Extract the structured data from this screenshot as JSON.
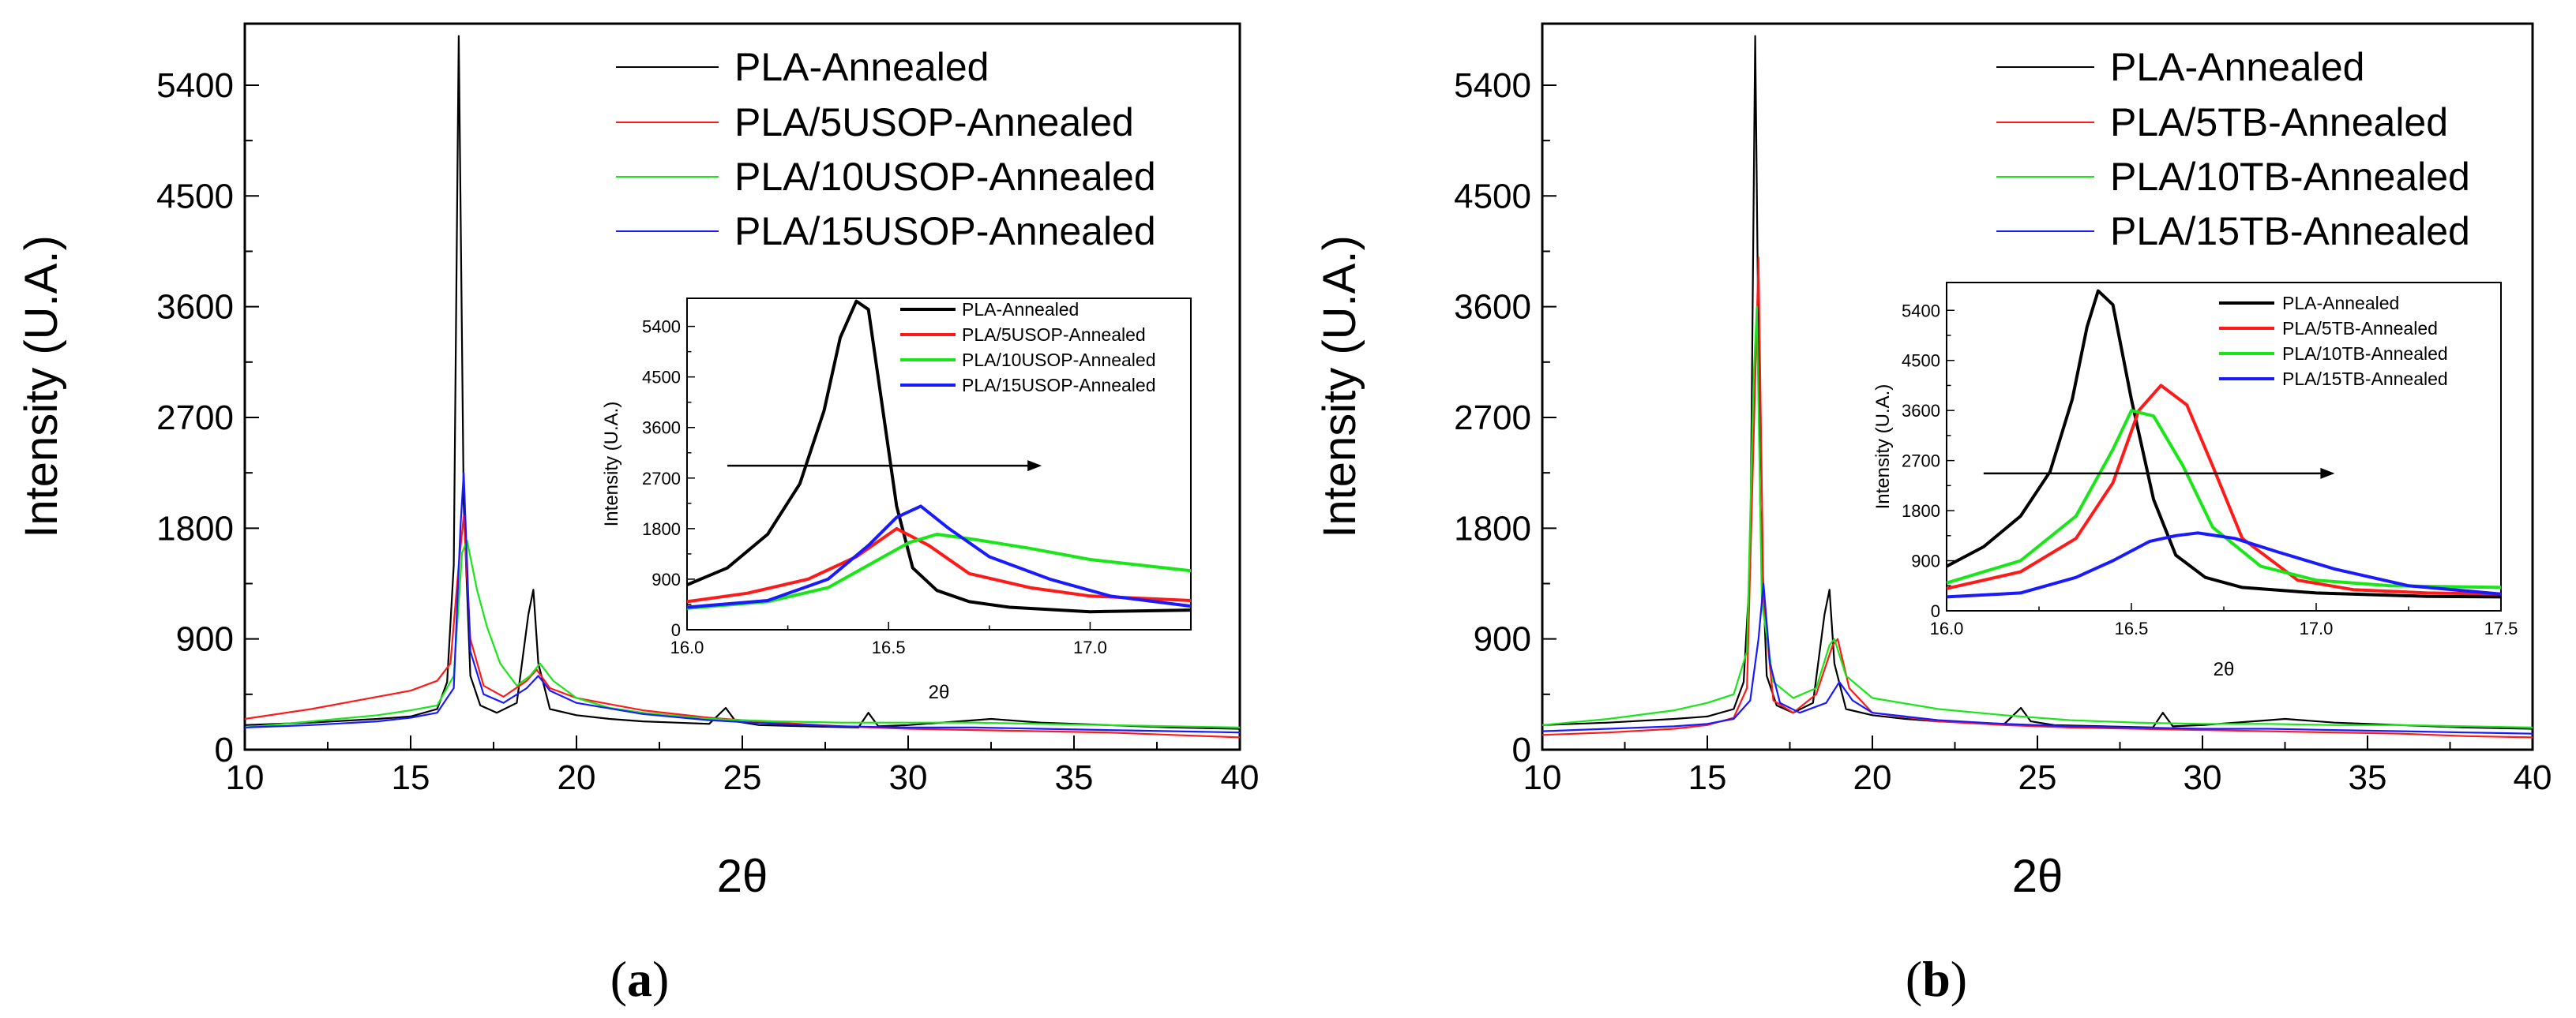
{
  "colors": {
    "black": "#000000",
    "red": "#ff1a1a",
    "green": "#19e619",
    "blue": "#1a1aff"
  },
  "chart_data": [
    {
      "type": "line",
      "panel_label_parts": [
        "(",
        "a",
        ")"
      ],
      "xlabel": "2θ",
      "ylabel": "Intensity (U.A.)",
      "xlim": [
        10,
        40
      ],
      "ylim": [
        0,
        5900
      ],
      "xticks": [
        10,
        15,
        20,
        25,
        30,
        35,
        40
      ],
      "yticks": [
        0,
        900,
        1800,
        2700,
        3600,
        4500,
        5400
      ],
      "legend_position": "top-right",
      "series": [
        {
          "name": "PLA-Annealed",
          "color": "#000000",
          "x": [
            10,
            12,
            14,
            15,
            15.8,
            16.1,
            16.3,
            16.45,
            16.6,
            16.8,
            17.1,
            17.6,
            18.2,
            18.55,
            18.7,
            18.85,
            19.2,
            20,
            21,
            22,
            23,
            24,
            24.5,
            24.8,
            25.5,
            27,
            28.5,
            28.8,
            29.1,
            30,
            32,
            32.5,
            34,
            36,
            38,
            40
          ],
          "y": [
            200,
            220,
            250,
            270,
            330,
            550,
            1500,
            5800,
            2000,
            600,
            360,
            300,
            380,
            1100,
            1300,
            700,
            330,
            280,
            250,
            230,
            220,
            210,
            340,
            230,
            200,
            190,
            180,
            300,
            190,
            200,
            240,
            250,
            220,
            200,
            180,
            170
          ]
        },
        {
          "name": "PLA/5USOP-Annealed",
          "color": "#ff1a1a",
          "x": [
            10,
            12,
            14,
            15,
            15.8,
            16.2,
            16.45,
            16.6,
            16.8,
            17.2,
            17.8,
            18.5,
            18.8,
            19.2,
            20,
            22,
            24,
            26,
            28,
            30,
            32,
            34,
            36,
            38,
            40
          ],
          "y": [
            250,
            330,
            430,
            480,
            560,
            700,
            1500,
            1900,
            900,
            520,
            430,
            560,
            650,
            500,
            420,
            320,
            260,
            220,
            190,
            170,
            160,
            150,
            140,
            120,
            100
          ]
        },
        {
          "name": "PLA/10USOP-Annealed",
          "color": "#19e619",
          "x": [
            10,
            12,
            14,
            15,
            15.8,
            16.3,
            16.55,
            16.7,
            17,
            17.3,
            17.7,
            18.2,
            18.6,
            18.9,
            19.3,
            20,
            21,
            22,
            24,
            26,
            28,
            30,
            32,
            34,
            36,
            38,
            40
          ],
          "y": [
            180,
            230,
            280,
            320,
            360,
            600,
            1600,
            1700,
            1300,
            1000,
            700,
            520,
            600,
            700,
            560,
            420,
            340,
            300,
            250,
            230,
            220,
            220,
            220,
            210,
            200,
            190,
            180
          ]
        },
        {
          "name": "PLA/15USOP-Annealed",
          "color": "#1a1aff",
          "x": [
            10,
            12,
            14,
            15,
            15.8,
            16.3,
            16.5,
            16.6,
            16.8,
            17.2,
            17.8,
            18.5,
            18.85,
            19.2,
            20,
            22,
            24,
            26,
            28,
            30,
            32,
            34,
            36,
            38,
            40
          ],
          "y": [
            180,
            200,
            230,
            260,
            300,
            500,
            1800,
            2250,
            800,
            450,
            380,
            500,
            600,
            480,
            380,
            290,
            240,
            210,
            190,
            180,
            180,
            170,
            160,
            150,
            140
          ]
        }
      ],
      "inset": {
        "xlabel": "2θ",
        "ylabel": "Intensity (U.A.)",
        "xlim": [
          16.0,
          17.25
        ],
        "ylim": [
          0,
          5900
        ],
        "xticks": [
          "16.0",
          "16.5",
          "17.0"
        ],
        "yticks": [
          0,
          900,
          1800,
          2700,
          3600,
          4500,
          5400
        ],
        "arrow": [
          16.1,
          2920,
          16.88,
          2920
        ],
        "series": [
          {
            "name": "PLA-Annealed",
            "color": "#000000",
            "x": [
              16.0,
              16.1,
              16.2,
              16.28,
              16.34,
              16.38,
              16.42,
              16.45,
              16.48,
              16.52,
              16.56,
              16.62,
              16.7,
              16.8,
              17.0,
              17.25
            ],
            "y": [
              800,
              1100,
              1700,
              2600,
              3900,
              5200,
              5850,
              5700,
              4200,
              2200,
              1100,
              700,
              500,
              400,
              320,
              350
            ]
          },
          {
            "name": "PLA/5USOP-Annealed",
            "color": "#ff1a1a",
            "x": [
              16.0,
              16.15,
              16.3,
              16.42,
              16.52,
              16.6,
              16.7,
              16.85,
              17.0,
              17.25
            ],
            "y": [
              500,
              650,
              900,
              1300,
              1800,
              1500,
              1000,
              750,
              600,
              520
            ]
          },
          {
            "name": "PLA/10USOP-Annealed",
            "color": "#19e619",
            "x": [
              16.0,
              16.2,
              16.35,
              16.45,
              16.55,
              16.62,
              16.72,
              16.85,
              17.0,
              17.25
            ],
            "y": [
              380,
              500,
              750,
              1150,
              1550,
              1700,
              1600,
              1450,
              1250,
              1050
            ]
          },
          {
            "name": "PLA/15USOP-Annealed",
            "color": "#1a1aff",
            "x": [
              16.0,
              16.2,
              16.35,
              16.45,
              16.52,
              16.58,
              16.65,
              16.75,
              16.9,
              17.05,
              17.25
            ],
            "y": [
              400,
              520,
              900,
              1500,
              2000,
              2200,
              1800,
              1300,
              900,
              600,
              420
            ]
          }
        ]
      }
    },
    {
      "type": "line",
      "panel_label_parts": [
        "(",
        "b",
        ")"
      ],
      "xlabel": "2θ",
      "ylabel": "Intensity (U.A.)",
      "xlim": [
        10,
        40
      ],
      "ylim": [
        0,
        5900
      ],
      "xticks": [
        10,
        15,
        20,
        25,
        30,
        35,
        40
      ],
      "yticks": [
        0,
        900,
        1800,
        2700,
        3600,
        4500,
        5400
      ],
      "legend_position": "top-right",
      "series": [
        {
          "name": "PLA-Annealed",
          "color": "#000000",
          "x": [
            10,
            12,
            14,
            15,
            15.8,
            16.1,
            16.3,
            16.45,
            16.6,
            16.8,
            17.1,
            17.6,
            18.2,
            18.55,
            18.7,
            18.85,
            19.2,
            20,
            21,
            22,
            23,
            24,
            24.5,
            24.8,
            25.5,
            27,
            28.5,
            28.8,
            29.1,
            30,
            32,
            32.5,
            34,
            36,
            38,
            40
          ],
          "y": [
            200,
            220,
            250,
            270,
            330,
            550,
            1500,
            5800,
            2000,
            600,
            360,
            300,
            380,
            1100,
            1300,
            700,
            330,
            280,
            250,
            230,
            220,
            210,
            340,
            230,
            200,
            190,
            180,
            300,
            190,
            200,
            240,
            250,
            220,
            200,
            180,
            170
          ]
        },
        {
          "name": "PLA/5TB-Annealed",
          "color": "#ff1a1a",
          "x": [
            10,
            12,
            14,
            15,
            15.8,
            16.2,
            16.45,
            16.55,
            16.7,
            17.0,
            17.6,
            18.3,
            18.8,
            18.95,
            19.3,
            20,
            22,
            24,
            26,
            28,
            30,
            32,
            34,
            36,
            38,
            40
          ],
          "y": [
            120,
            140,
            170,
            200,
            260,
            500,
            3000,
            4000,
            1200,
            400,
            300,
            450,
            850,
            900,
            500,
            300,
            230,
            200,
            180,
            170,
            160,
            150,
            140,
            130,
            110,
            100
          ]
        },
        {
          "name": "PLA/10TB-Annealed",
          "color": "#19e619",
          "x": [
            10,
            12,
            14,
            15,
            15.8,
            16.2,
            16.4,
            16.5,
            16.65,
            17.0,
            17.6,
            18.3,
            18.7,
            18.85,
            19.2,
            20,
            22,
            24,
            26,
            28,
            30,
            32,
            34,
            36,
            38,
            40
          ],
          "y": [
            200,
            250,
            320,
            380,
            450,
            800,
            3000,
            3600,
            1200,
            550,
            420,
            500,
            850,
            900,
            600,
            420,
            330,
            280,
            240,
            220,
            210,
            210,
            200,
            200,
            190,
            180
          ]
        },
        {
          "name": "PLA/15TB-Annealed",
          "color": "#1a1aff",
          "x": [
            10,
            12,
            14,
            15,
            15.8,
            16.3,
            16.55,
            16.7,
            16.9,
            17.2,
            17.8,
            18.6,
            19.0,
            19.4,
            20,
            22,
            24,
            26,
            28,
            30,
            32,
            34,
            36,
            38,
            40
          ],
          "y": [
            150,
            170,
            190,
            210,
            250,
            400,
            900,
            1350,
            700,
            380,
            300,
            380,
            550,
            400,
            300,
            240,
            210,
            190,
            180,
            170,
            170,
            160,
            150,
            140,
            130
          ]
        }
      ],
      "inset": {
        "xlabel": "2θ",
        "ylabel": "Intensity (U.A.)",
        "xlim": [
          16.0,
          17.5
        ],
        "ylim": [
          0,
          5900
        ],
        "xticks": [
          "16.0",
          "16.5",
          "17.0",
          "17.5"
        ],
        "yticks": [
          0,
          900,
          1800,
          2700,
          3600,
          4500,
          5400
        ],
        "arrow": [
          16.1,
          2470,
          17.05,
          2470
        ],
        "series": [
          {
            "name": "PLA-Annealed",
            "color": "#000000",
            "x": [
              16.0,
              16.1,
              16.2,
              16.28,
              16.34,
              16.38,
              16.41,
              16.45,
              16.5,
              16.56,
              16.62,
              16.7,
              16.8,
              17.0,
              17.3,
              17.5
            ],
            "y": [
              800,
              1150,
              1700,
              2500,
              3800,
              5100,
              5750,
              5500,
              3800,
              2000,
              1000,
              600,
              420,
              320,
              260,
              250
            ]
          },
          {
            "name": "PLA/5TB-Annealed",
            "color": "#ff1a1a",
            "x": [
              16.0,
              16.2,
              16.35,
              16.45,
              16.52,
              16.58,
              16.65,
              16.72,
              16.8,
              16.95,
              17.1,
              17.3,
              17.5
            ],
            "y": [
              400,
              700,
              1300,
              2300,
              3600,
              4050,
              3700,
              2600,
              1300,
              550,
              380,
              320,
              300
            ]
          },
          {
            "name": "PLA/10TB-Annealed",
            "color": "#19e619",
            "x": [
              16.0,
              16.2,
              16.35,
              16.45,
              16.5,
              16.56,
              16.64,
              16.72,
              16.85,
              17.0,
              17.2,
              17.5
            ],
            "y": [
              500,
              900,
              1700,
              2900,
              3600,
              3500,
              2600,
              1500,
              800,
              550,
              450,
              420
            ]
          },
          {
            "name": "PLA/15TB-Annealed",
            "color": "#1a1aff",
            "x": [
              16.0,
              16.2,
              16.35,
              16.45,
              16.55,
              16.62,
              16.68,
              16.78,
              16.9,
              17.05,
              17.25,
              17.5
            ],
            "y": [
              250,
              320,
              600,
              900,
              1250,
              1350,
              1400,
              1300,
              1050,
              750,
              450,
              300
            ]
          }
        ]
      }
    }
  ]
}
